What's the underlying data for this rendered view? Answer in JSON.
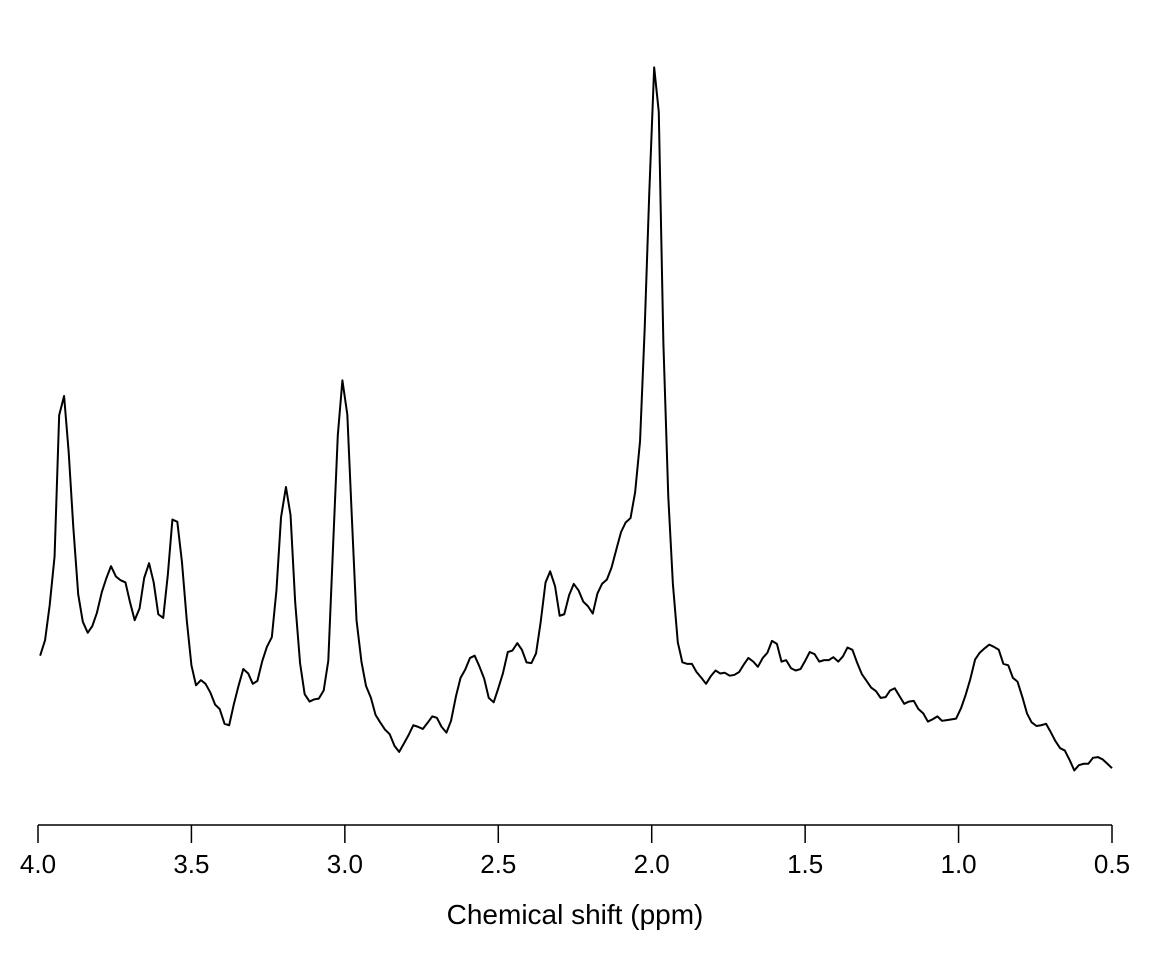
{
  "chart_data": {
    "type": "line",
    "xlabel": "Chemical shift (ppm)",
    "ylabel": "",
    "title": "",
    "x_reversed": true,
    "xlim": [
      4.0,
      0.5
    ],
    "ylim": [
      0,
      1
    ],
    "x_ticks": [
      4.0,
      3.5,
      3.0,
      2.5,
      2.0,
      1.5,
      1.0,
      0.5
    ],
    "x_tick_labels": [
      "4.0",
      "3.5",
      "3.0",
      "2.5",
      "2.0",
      "1.5",
      "1.0",
      "0.5"
    ],
    "show_y_axis": false,
    "grid": false,
    "line_color": "#000000",
    "series": [
      {
        "x": [
          3.993,
          3.977,
          3.962,
          3.946,
          3.931,
          3.915,
          3.9,
          3.885,
          3.869,
          3.854,
          3.838,
          3.823,
          3.808,
          3.792,
          3.777,
          3.762,
          3.746,
          3.731,
          3.715,
          3.7,
          3.685,
          3.669,
          3.654,
          3.638,
          3.623,
          3.608,
          3.592,
          3.577,
          3.562,
          3.546,
          3.531,
          3.515,
          3.5,
          3.485,
          3.469,
          3.454,
          3.438,
          3.423,
          3.408,
          3.392,
          3.377,
          3.362,
          3.346,
          3.331,
          3.315,
          3.3,
          3.285,
          3.269,
          3.254,
          3.238,
          3.223,
          3.208,
          3.192,
          3.177,
          3.162,
          3.146,
          3.131,
          3.115,
          3.1,
          3.085,
          3.069,
          3.054,
          3.038,
          3.023,
          3.008,
          2.992,
          2.977,
          2.962,
          2.946,
          2.931,
          2.915,
          2.9,
          2.885,
          2.869,
          2.854,
          2.838,
          2.823,
          2.808,
          2.792,
          2.777,
          2.762,
          2.746,
          2.731,
          2.715,
          2.7,
          2.685,
          2.669,
          2.654,
          2.638,
          2.623,
          2.608,
          2.592,
          2.577,
          2.562,
          2.546,
          2.531,
          2.515,
          2.5,
          2.485,
          2.469,
          2.454,
          2.438,
          2.423,
          2.408,
          2.392,
          2.377,
          2.362,
          2.346,
          2.331,
          2.315,
          2.3,
          2.285,
          2.269,
          2.254,
          2.238,
          2.223,
          2.208,
          2.192,
          2.177,
          2.162,
          2.146,
          2.131,
          2.115,
          2.1,
          2.085,
          2.069,
          2.054,
          2.038,
          2.023,
          2.008,
          1.992,
          1.977,
          1.962,
          1.946,
          1.931,
          1.915,
          1.9,
          1.885,
          1.869,
          1.854,
          1.838,
          1.823,
          1.808,
          1.792,
          1.777,
          1.762,
          1.746,
          1.731,
          1.715,
          1.7,
          1.685,
          1.669,
          1.654,
          1.638,
          1.623,
          1.608,
          1.592,
          1.577,
          1.562,
          1.546,
          1.531,
          1.515,
          1.5,
          1.485,
          1.469,
          1.454,
          1.438,
          1.423,
          1.408,
          1.392,
          1.377,
          1.362,
          1.346,
          1.331,
          1.315,
          1.3,
          1.285,
          1.269,
          1.254,
          1.238,
          1.223,
          1.208,
          1.192,
          1.177,
          1.162,
          1.146,
          1.131,
          1.115,
          1.1,
          1.085,
          1.069,
          1.054,
          1.038,
          1.023,
          1.008,
          0.992,
          0.977,
          0.962,
          0.946,
          0.931,
          0.915,
          0.9,
          0.885,
          0.869,
          0.854,
          0.838,
          0.823,
          0.808,
          0.792,
          0.777,
          0.762,
          0.746,
          0.731,
          0.715,
          0.7,
          0.685,
          0.669,
          0.654,
          0.638,
          0.623,
          0.608,
          0.592,
          0.577,
          0.562,
          0.546,
          0.531,
          0.515,
          0.5
        ],
        "y": [
          0.195,
          0.216,
          0.263,
          0.329,
          0.52,
          0.546,
          0.47,
          0.369,
          0.278,
          0.241,
          0.226,
          0.235,
          0.253,
          0.281,
          0.3,
          0.316,
          0.302,
          0.297,
          0.294,
          0.267,
          0.243,
          0.259,
          0.3,
          0.32,
          0.294,
          0.251,
          0.246,
          0.304,
          0.379,
          0.376,
          0.322,
          0.242,
          0.182,
          0.155,
          0.162,
          0.157,
          0.145,
          0.129,
          0.123,
          0.103,
          0.101,
          0.129,
          0.155,
          0.177,
          0.171,
          0.157,
          0.161,
          0.188,
          0.207,
          0.22,
          0.283,
          0.382,
          0.423,
          0.385,
          0.268,
          0.185,
          0.143,
          0.133,
          0.136,
          0.137,
          0.148,
          0.188,
          0.347,
          0.493,
          0.567,
          0.521,
          0.38,
          0.243,
          0.187,
          0.154,
          0.138,
          0.115,
          0.105,
          0.095,
          0.089,
          0.073,
          0.065,
          0.076,
          0.088,
          0.101,
          0.099,
          0.096,
          0.104,
          0.113,
          0.111,
          0.099,
          0.091,
          0.107,
          0.14,
          0.165,
          0.176,
          0.192,
          0.195,
          0.181,
          0.164,
          0.138,
          0.132,
          0.151,
          0.171,
          0.2,
          0.202,
          0.212,
          0.203,
          0.186,
          0.185,
          0.198,
          0.24,
          0.294,
          0.309,
          0.289,
          0.249,
          0.251,
          0.277,
          0.292,
          0.283,
          0.268,
          0.262,
          0.252,
          0.279,
          0.292,
          0.298,
          0.314,
          0.339,
          0.362,
          0.375,
          0.381,
          0.416,
          0.485,
          0.636,
          0.82,
          0.99,
          0.93,
          0.618,
          0.41,
          0.292,
          0.213,
          0.186,
          0.184,
          0.184,
          0.173,
          0.165,
          0.157,
          0.167,
          0.175,
          0.171,
          0.172,
          0.168,
          0.169,
          0.173,
          0.183,
          0.192,
          0.187,
          0.18,
          0.192,
          0.199,
          0.215,
          0.211,
          0.187,
          0.189,
          0.178,
          0.175,
          0.177,
          0.188,
          0.2,
          0.197,
          0.187,
          0.189,
          0.189,
          0.193,
          0.187,
          0.194,
          0.206,
          0.203,
          0.186,
          0.17,
          0.161,
          0.152,
          0.147,
          0.138,
          0.139,
          0.148,
          0.151,
          0.14,
          0.13,
          0.133,
          0.134,
          0.123,
          0.117,
          0.106,
          0.109,
          0.113,
          0.107,
          0.108,
          0.109,
          0.11,
          0.124,
          0.142,
          0.163,
          0.19,
          0.199,
          0.205,
          0.21,
          0.207,
          0.203,
          0.184,
          0.182,
          0.165,
          0.16,
          0.139,
          0.117,
          0.105,
          0.1,
          0.101,
          0.103,
          0.092,
          0.08,
          0.07,
          0.067,
          0.054,
          0.04,
          0.047,
          0.049,
          0.049,
          0.057,
          0.058,
          0.055,
          0.049,
          0.043
        ]
      }
    ]
  }
}
